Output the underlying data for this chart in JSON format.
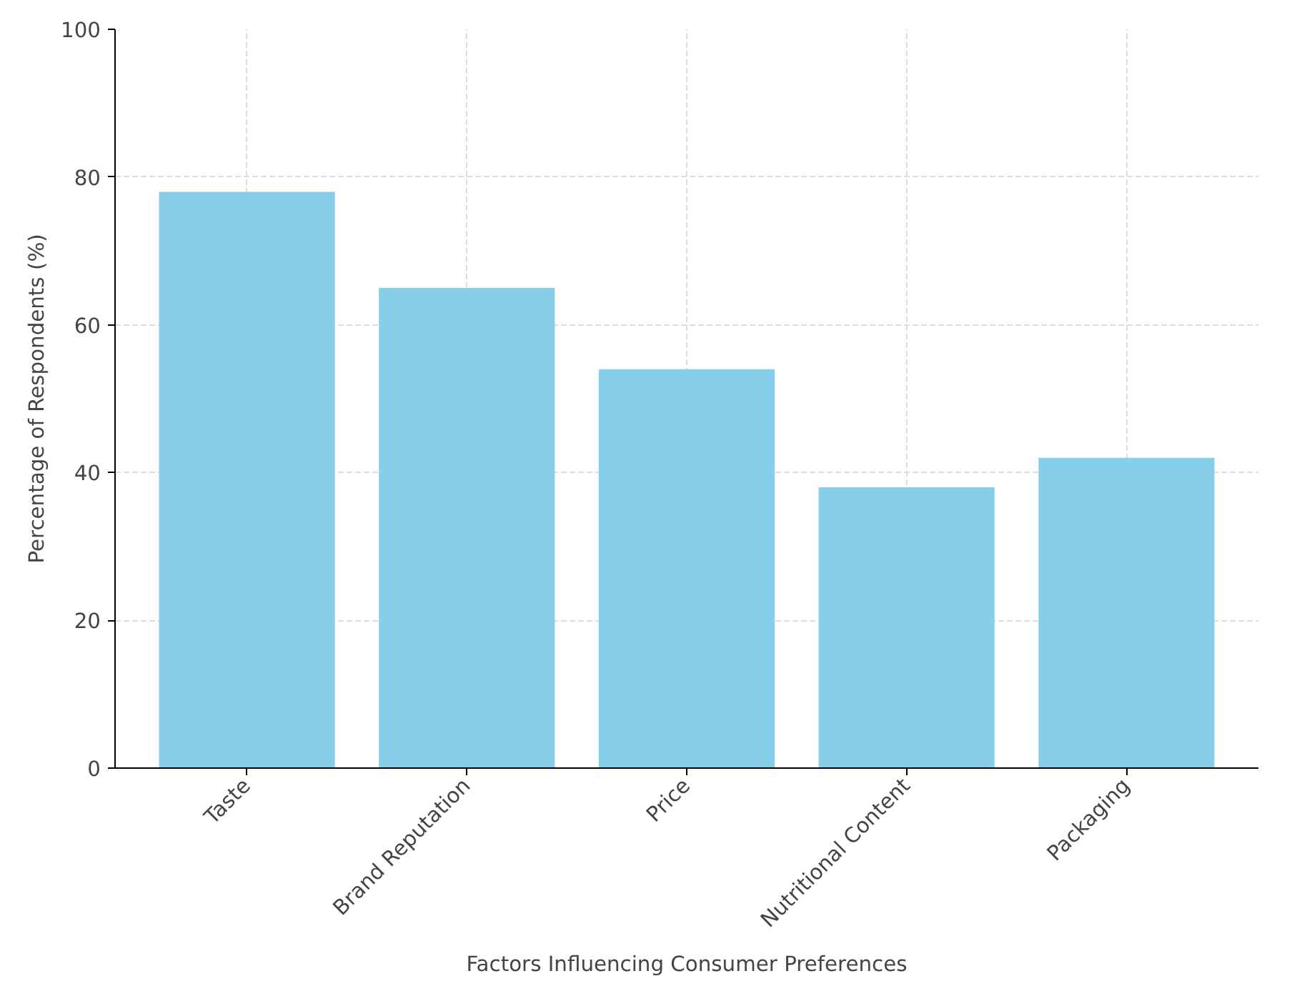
{
  "chart_data": {
    "type": "bar",
    "xlabel": "Factors Influencing Consumer Preferences",
    "ylabel": "Percentage of Respondents (%)",
    "categories": [
      "Taste",
      "Brand Reputation",
      "Price",
      "Nutritional Content",
      "Packaging"
    ],
    "values": [
      78,
      65,
      54,
      38,
      42
    ],
    "color": "#87ceeb",
    "ylim": [
      0,
      100
    ],
    "yticks": [
      0,
      20,
      40,
      60,
      80,
      100
    ],
    "grid": true
  }
}
